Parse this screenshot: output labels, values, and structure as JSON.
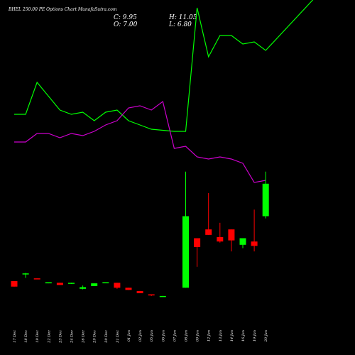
{
  "chart_data": {
    "type": "candlestick",
    "title": "BHEL 250.00 PE Options Chart MunafaSutra.com",
    "ohlc_labels": {
      "close": "C: 9.95",
      "high": "H: 11.05",
      "open": "O: 7.00",
      "low": "L: 6.80"
    },
    "categories": [
      "17 Dec",
      "18 Dec",
      "19 Dec",
      "22 Dec",
      "23 Dec",
      "24 Dec",
      "26 Dec",
      "29 Dec",
      "30 Dec",
      "31 Dec",
      "01 Jan",
      "02 Jan",
      "05 Jan",
      "06 Jan",
      "07 Jan",
      "08 Jan",
      "09 Jan",
      "12 Jan",
      "13 Jan",
      "14 Jan",
      "16 Jan",
      "19 Jan",
      "20 Jan"
    ],
    "candles": [
      {
        "open": 1.1,
        "high": 1.1,
        "low": 0.6,
        "close": 0.6
      },
      {
        "open": 1.8,
        "high": 1.85,
        "low": 1.4,
        "close": 1.8
      },
      {
        "open": 1.35,
        "high": 1.35,
        "low": 1.3,
        "close": 1.3
      },
      {
        "open": 0.9,
        "high": 1.0,
        "low": 0.9,
        "close": 1.0
      },
      {
        "open": 0.95,
        "high": 0.95,
        "low": 0.75,
        "close": 0.75
      },
      {
        "open": 0.85,
        "high": 0.95,
        "low": 0.85,
        "close": 0.95
      },
      {
        "open": 0.4,
        "high": 0.7,
        "low": 0.35,
        "close": 0.55
      },
      {
        "open": 0.65,
        "high": 0.9,
        "low": 0.65,
        "close": 0.9
      },
      {
        "open": 0.95,
        "high": 1.0,
        "low": 0.95,
        "close": 1.0
      },
      {
        "open": 0.95,
        "high": 0.95,
        "low": 0.4,
        "close": 0.5
      },
      {
        "open": 0.5,
        "high": 0.5,
        "low": 0.3,
        "close": 0.3
      },
      {
        "open": 0.2,
        "high": 0.2,
        "low": 0.0,
        "close": 0.0
      },
      {
        "open": -0.1,
        "high": -0.1,
        "low": -0.25,
        "close": -0.2
      },
      {
        "open": -0.3,
        "high": -0.25,
        "low": -0.3,
        "close": -0.25
      },
      {
        "open": 0.5,
        "high": 11.05,
        "low": 0.5,
        "close": 7.0
      },
      {
        "open": 5.0,
        "high": 5.0,
        "low": 2.4,
        "close": 4.2
      },
      {
        "open": 5.8,
        "high": 9.1,
        "low": 5.3,
        "close": 5.3
      },
      {
        "open": 5.1,
        "high": 6.4,
        "low": 4.6,
        "close": 4.7
      },
      {
        "open": 5.8,
        "high": 5.8,
        "low": 3.8,
        "close": 4.8
      },
      {
        "open": 4.4,
        "high": 5.0,
        "low": 4.1,
        "close": 5.0
      },
      {
        "open": 4.7,
        "high": 7.6,
        "low": 3.8,
        "close": 4.3
      },
      {
        "open": 7.0,
        "high": 11.05,
        "low": 6.8,
        "close": 9.95
      }
    ],
    "candle_categories": [
      "17 Dec",
      "18 Dec",
      "19 Dec",
      "22 Dec",
      "23 Dec",
      "24 Dec",
      "26 Dec",
      "29 Dec",
      "30 Dec",
      "31 Dec",
      "01 Jan",
      "02 Jan",
      "05 Jan",
      "06 Jan",
      "08 Jan",
      "09 Jan",
      "12 Jan",
      "13 Jan",
      "14 Jan",
      "16 Jan",
      "19 Jan",
      "20 Jan"
    ],
    "lines": [
      {
        "color": "#00ff00",
        "points": [
          {
            "x": "17 Dec",
            "y": 12.5
          },
          {
            "x": "18 Dec",
            "y": 12.5
          },
          {
            "x": "19 Dec",
            "y": 14.0
          },
          {
            "x": "23 Dec",
            "y": 12.7
          },
          {
            "x": "24 Dec",
            "y": 12.5
          },
          {
            "x": "26 Dec",
            "y": 12.6
          },
          {
            "x": "29 Dec",
            "y": 12.2
          },
          {
            "x": "30 Dec",
            "y": 12.6
          },
          {
            "x": "31 Dec",
            "y": 12.7
          },
          {
            "x": "01 Jan",
            "y": 12.2
          },
          {
            "x": "02 Jan",
            "y": 12.0
          },
          {
            "x": "05 Jan",
            "y": 11.8
          },
          {
            "x": "07 Jan",
            "y": 11.7
          },
          {
            "x": "08 Jan",
            "y": 11.7
          },
          {
            "x": "09 Jan",
            "y": 17.5
          },
          {
            "x": "12 Jan",
            "y": 15.2
          },
          {
            "x": "13 Jan",
            "y": 16.2
          },
          {
            "x": "14 Jan",
            "y": 16.2
          },
          {
            "x": "16 Jan",
            "y": 15.8
          },
          {
            "x": "19 Jan",
            "y": 15.9
          },
          {
            "x": "20 Jan",
            "y": 15.5
          },
          {
            "x": "20 Jan end",
            "y": 18.5
          }
        ]
      },
      {
        "color": "#cc00cc",
        "points": [
          {
            "x": "17 Dec",
            "y": 11.2
          },
          {
            "x": "18 Dec",
            "y": 11.2
          },
          {
            "x": "19 Dec",
            "y": 11.6
          },
          {
            "x": "22 Dec",
            "y": 11.6
          },
          {
            "x": "23 Dec",
            "y": 11.4
          },
          {
            "x": "24 Dec",
            "y": 11.6
          },
          {
            "x": "26 Dec",
            "y": 11.5
          },
          {
            "x": "29 Dec",
            "y": 11.7
          },
          {
            "x": "30 Dec",
            "y": 12.0
          },
          {
            "x": "31 Dec",
            "y": 12.2
          },
          {
            "x": "01 Jan",
            "y": 12.8
          },
          {
            "x": "02 Jan",
            "y": 12.9
          },
          {
            "x": "05 Jan",
            "y": 12.7
          },
          {
            "x": "06 Jan",
            "y": 13.1
          },
          {
            "x": "07 Jan",
            "y": 10.9
          },
          {
            "x": "08 Jan",
            "y": 11.0
          },
          {
            "x": "09 Jan",
            "y": 10.5
          },
          {
            "x": "12 Jan",
            "y": 10.4
          },
          {
            "x": "13 Jan",
            "y": 10.5
          },
          {
            "x": "14 Jan",
            "y": 10.4
          },
          {
            "x": "16 Jan",
            "y": 10.2
          },
          {
            "x": "19 Jan",
            "y": 9.3
          },
          {
            "x": "20 Jan",
            "y": 9.4
          }
        ]
      }
    ],
    "up_color": "#00ff00",
    "down_color": "#ff0000",
    "background": "#000000",
    "grid": false
  }
}
